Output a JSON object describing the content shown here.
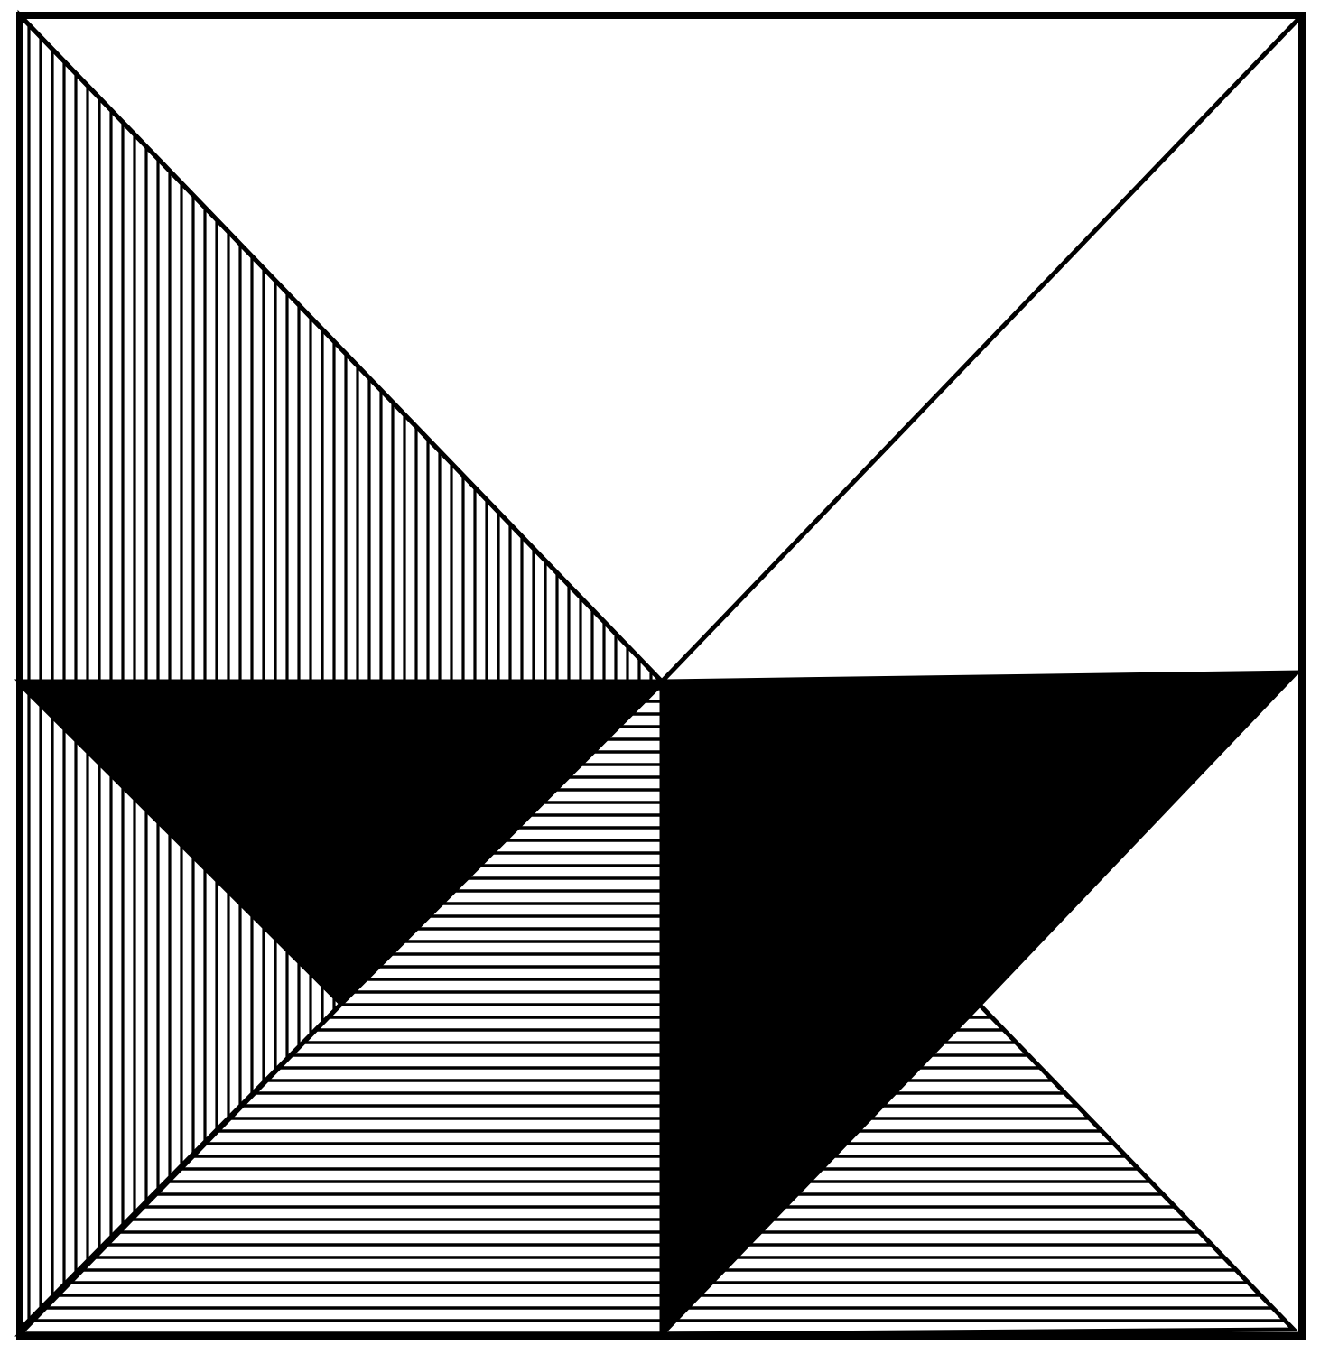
{
  "figure": {
    "kind": "tangram-style square dissection",
    "colors": {
      "background": "#ffffff",
      "ink": "#000000"
    },
    "pieces": [
      {
        "id": "top-white-triangle",
        "fill": "white"
      },
      {
        "id": "right-white-triangle",
        "fill": "white"
      },
      {
        "id": "left-vertical-hatch-triangle",
        "fill": "vertical-hatch"
      },
      {
        "id": "left-black-triangle",
        "fill": "solid-black"
      },
      {
        "id": "center-right-black-triangle",
        "fill": "solid-black"
      },
      {
        "id": "bottom-left-vertical-hatch-triangle",
        "fill": "vertical-hatch"
      },
      {
        "id": "bottom-horizontal-hatch-trapezoid",
        "fill": "horizontal-hatch"
      },
      {
        "id": "bottom-right-horizontal-hatch-triangle",
        "fill": "horizontal-hatch"
      },
      {
        "id": "bottom-right-white-triangle",
        "fill": "white"
      }
    ]
  }
}
